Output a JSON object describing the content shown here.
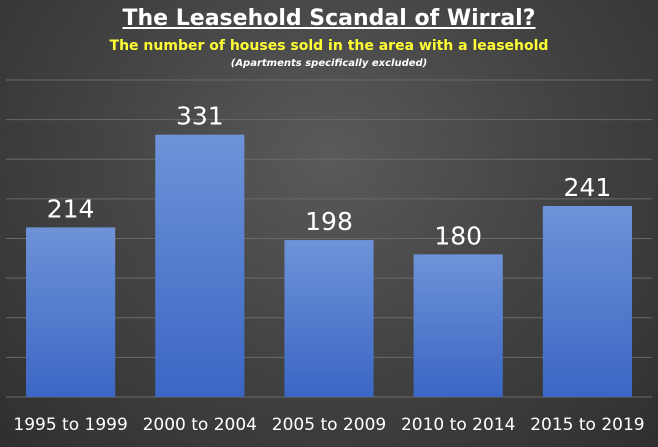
{
  "chart_data": {
    "type": "bar",
    "title": "The Leasehold Scandal of Wirral?",
    "subtitle": "The number of houses sold in the area with a leasehold",
    "note": "(Apartments specifically excluded)",
    "categories": [
      "1995 to 1999",
      "2000 to 2004",
      "2005 to 2009",
      "2010 to 2014",
      "2015 to 2019"
    ],
    "values": [
      214,
      331,
      198,
      180,
      241
    ],
    "data_labels": [
      "214",
      "331",
      "198",
      "180",
      "241"
    ],
    "ylim": [
      0,
      400
    ],
    "grid": true,
    "legend": "none",
    "colors": {
      "bar_top": "#6e93d8",
      "bar_bottom": "#3b66c4",
      "grid": "#6a6a6a",
      "text": "#ffffff"
    }
  }
}
